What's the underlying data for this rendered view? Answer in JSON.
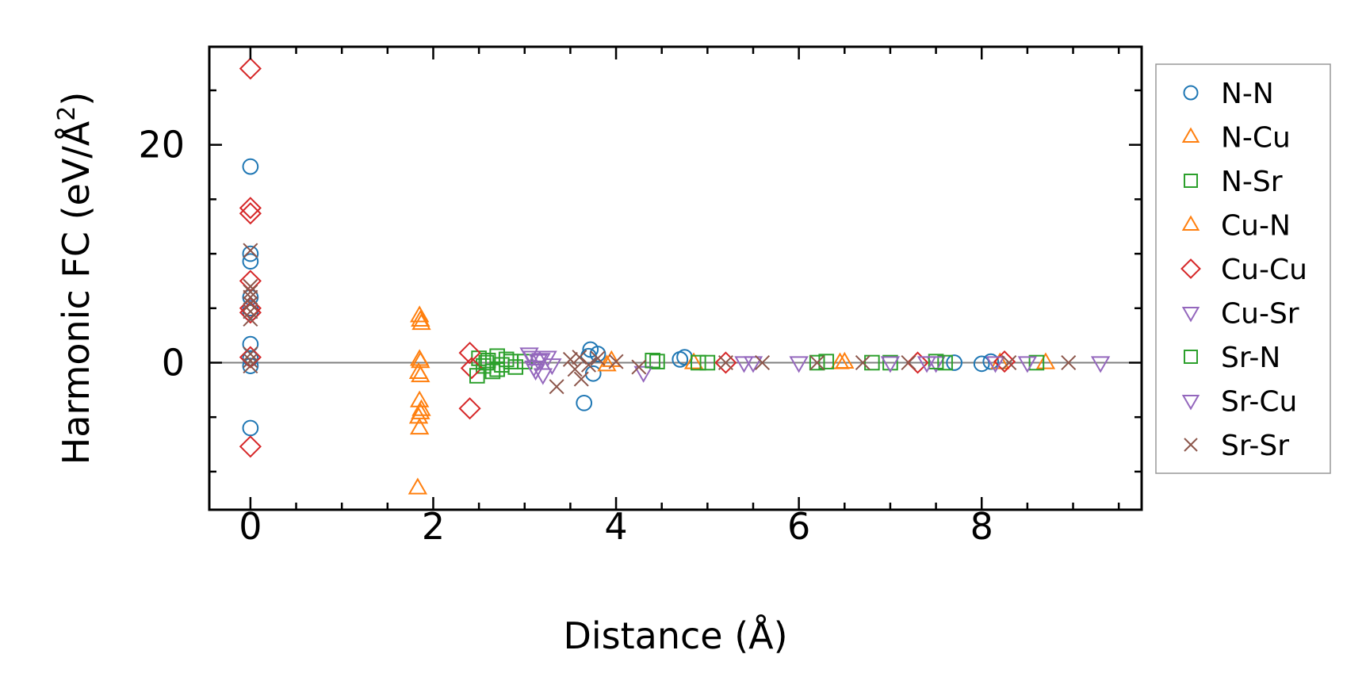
{
  "chart_data": {
    "type": "scatter",
    "title": "",
    "xlabel": "Distance (Å)",
    "ylabel": "Harmonic FC (eV/Å",
    "ylabel_superscript": "2",
    "ylabel_suffix": ")",
    "xlim": [
      -0.45,
      9.75
    ],
    "ylim": [
      -13.5,
      29
    ],
    "xticks": [
      0,
      2,
      4,
      6,
      8
    ],
    "xtick_labels": [
      "0",
      "2",
      "4",
      "6",
      "8"
    ],
    "yticks": [
      0,
      20
    ],
    "ytick_labels": [
      "0",
      "20"
    ],
    "zero_line": true,
    "grid": false,
    "legend_position": "outside-right",
    "series": [
      {
        "name": "N-N",
        "marker": "circle",
        "color": "#1f77b4",
        "points": [
          [
            0,
            18
          ],
          [
            0,
            10
          ],
          [
            0,
            9.3
          ],
          [
            0,
            6
          ],
          [
            0,
            5
          ],
          [
            0,
            4.6
          ],
          [
            0,
            1.7
          ],
          [
            0,
            0.4
          ],
          [
            0,
            -0.3
          ],
          [
            0,
            -6
          ],
          [
            3.65,
            -3.7
          ],
          [
            3.7,
            0.6
          ],
          [
            3.72,
            1.2
          ],
          [
            3.75,
            -1.0
          ],
          [
            3.8,
            0.8
          ],
          [
            4.7,
            0.3
          ],
          [
            4.75,
            0.5
          ],
          [
            7.7,
            0
          ],
          [
            8.0,
            -0.1
          ],
          [
            8.1,
            0.1
          ]
        ]
      },
      {
        "name": "N-Cu",
        "marker": "triangle-up",
        "color": "#ff7f0e",
        "points": [
          [
            1.85,
            4.3
          ],
          [
            1.87,
            3.6
          ],
          [
            1.85,
            0.3
          ],
          [
            1.84,
            -0.9
          ],
          [
            1.86,
            -1.2
          ],
          [
            1.85,
            -3.5
          ],
          [
            1.87,
            -4.3
          ],
          [
            1.84,
            -5.0
          ],
          [
            1.85,
            -6.0
          ],
          [
            1.83,
            -11.5
          ],
          [
            3.95,
            0.2
          ],
          [
            4.85,
            0
          ],
          [
            6.45,
            0
          ],
          [
            8.2,
            0
          ],
          [
            8.7,
            0
          ]
        ]
      },
      {
        "name": "N-Sr",
        "marker": "square",
        "color": "#2ca02c",
        "points": [
          [
            2.5,
            0.4
          ],
          [
            2.55,
            -0.3
          ],
          [
            2.6,
            0.2
          ],
          [
            2.65,
            -0.8
          ],
          [
            2.7,
            0.6
          ],
          [
            2.75,
            -0.2
          ],
          [
            2.8,
            0.3
          ],
          [
            2.9,
            -0.4
          ],
          [
            3.0,
            0.1
          ],
          [
            4.45,
            0.1
          ],
          [
            5.0,
            0
          ],
          [
            6.3,
            0.1
          ],
          [
            7.0,
            0
          ],
          [
            7.6,
            0
          ]
        ]
      },
      {
        "name": "Cu-N",
        "marker": "triangle-up",
        "color": "#ff7f0e",
        "points": [
          [
            1.86,
            3.9
          ],
          [
            1.86,
            0.1
          ],
          [
            1.86,
            -4.6
          ],
          [
            3.9,
            -0.2
          ],
          [
            6.5,
            0.05
          ]
        ]
      },
      {
        "name": "Cu-Cu",
        "marker": "diamond",
        "color": "#d62728",
        "points": [
          [
            0,
            27
          ],
          [
            0,
            14.2
          ],
          [
            0,
            13.7
          ],
          [
            0,
            7.5
          ],
          [
            0,
            5
          ],
          [
            0,
            4.6
          ],
          [
            0,
            0.5
          ],
          [
            0,
            -7.7
          ],
          [
            2.4,
            0.9
          ],
          [
            2.42,
            -0.5
          ],
          [
            2.4,
            -4.2
          ],
          [
            5.2,
            0
          ],
          [
            7.3,
            0
          ],
          [
            8.25,
            0.1
          ]
        ]
      },
      {
        "name": "Cu-Sr",
        "marker": "triangle-down",
        "color": "#9467bd",
        "points": [
          [
            3.05,
            0.8
          ],
          [
            3.1,
            -0.4
          ],
          [
            3.15,
            0.2
          ],
          [
            3.2,
            -1.1
          ],
          [
            3.25,
            0.5
          ],
          [
            4.3,
            -0.9
          ],
          [
            5.4,
            0
          ],
          [
            7.0,
            0
          ],
          [
            7.5,
            0
          ],
          [
            8.15,
            0
          ]
        ]
      },
      {
        "name": "Sr-N",
        "marker": "square",
        "color": "#2ca02c",
        "points": [
          [
            2.48,
            -1.2
          ],
          [
            2.58,
            0
          ],
          [
            2.7,
            -0.6
          ],
          [
            2.85,
            0.1
          ],
          [
            4.4,
            0.2
          ],
          [
            4.9,
            0
          ],
          [
            6.2,
            0
          ],
          [
            6.8,
            0
          ],
          [
            7.5,
            0.1
          ],
          [
            8.6,
            0
          ]
        ]
      },
      {
        "name": "Sr-Cu",
        "marker": "triangle-down",
        "color": "#9467bd",
        "points": [
          [
            3.08,
            0.5
          ],
          [
            3.12,
            -0.7
          ],
          [
            3.18,
            0.3
          ],
          [
            3.3,
            -0.2
          ],
          [
            5.5,
            0
          ],
          [
            6.0,
            0
          ],
          [
            7.4,
            0
          ],
          [
            8.5,
            0
          ],
          [
            9.3,
            0
          ]
        ]
      },
      {
        "name": "Sr-Sr",
        "marker": "x",
        "color": "#8c564b",
        "points": [
          [
            0,
            10.3
          ],
          [
            0,
            7
          ],
          [
            0,
            6.5
          ],
          [
            0,
            6
          ],
          [
            0,
            5.4
          ],
          [
            0,
            4.7
          ],
          [
            0,
            4
          ],
          [
            0,
            0.8
          ],
          [
            0,
            0.2
          ],
          [
            0,
            -0.3
          ],
          [
            3.35,
            -2.2
          ],
          [
            3.5,
            0.3
          ],
          [
            3.55,
            -0.6
          ],
          [
            3.6,
            0.5
          ],
          [
            3.62,
            -1.5
          ],
          [
            3.7,
            -0.2
          ],
          [
            3.8,
            0.4
          ],
          [
            4.0,
            0.1
          ],
          [
            4.25,
            -0.4
          ],
          [
            5.2,
            0
          ],
          [
            5.6,
            0
          ],
          [
            6.2,
            0
          ],
          [
            6.7,
            0
          ],
          [
            7.2,
            0
          ],
          [
            8.3,
            0
          ],
          [
            8.95,
            0
          ]
        ]
      }
    ]
  }
}
